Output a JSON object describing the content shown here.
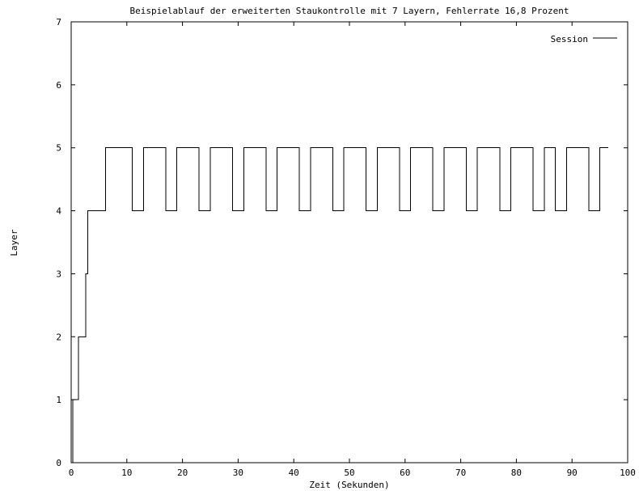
{
  "chart_data": {
    "type": "line",
    "title": "Beispielablauf der erweiterten Staukontrolle mit 7 Layern, Fehlerrate 16,8 Prozent",
    "xlabel": "Zeit (Sekunden)",
    "ylabel": "Layer",
    "xlim": [
      0,
      100
    ],
    "ylim": [
      0,
      7
    ],
    "xticks": [
      0,
      10,
      20,
      30,
      40,
      50,
      60,
      70,
      80,
      90,
      100
    ],
    "yticks": [
      0,
      1,
      2,
      3,
      4,
      5,
      6,
      7
    ],
    "grid": false,
    "legend_position": "top-right",
    "line_style": "step",
    "series": [
      {
        "name": "Session",
        "color": "#000000",
        "points": [
          [
            0.3,
            0
          ],
          [
            0.3,
            1
          ],
          [
            1.3,
            1
          ],
          [
            1.3,
            2
          ],
          [
            2.6,
            2
          ],
          [
            2.6,
            3
          ],
          [
            3.0,
            3
          ],
          [
            3.0,
            4
          ],
          [
            6.2,
            4
          ],
          [
            6.2,
            5
          ],
          [
            11.0,
            5
          ],
          [
            11.0,
            4
          ],
          [
            13.0,
            4
          ],
          [
            13.0,
            5
          ],
          [
            17.0,
            5
          ],
          [
            17.0,
            4
          ],
          [
            19.0,
            4
          ],
          [
            19.0,
            5
          ],
          [
            23.0,
            5
          ],
          [
            23.0,
            4
          ],
          [
            25.0,
            4
          ],
          [
            25.0,
            5
          ],
          [
            29.0,
            5
          ],
          [
            29.0,
            4
          ],
          [
            31.0,
            4
          ],
          [
            31.0,
            5
          ],
          [
            35.0,
            5
          ],
          [
            35.0,
            4
          ],
          [
            37.0,
            4
          ],
          [
            37.0,
            5
          ],
          [
            41.0,
            5
          ],
          [
            41.0,
            4
          ],
          [
            43.0,
            4
          ],
          [
            43.0,
            5
          ],
          [
            47.0,
            5
          ],
          [
            47.0,
            4
          ],
          [
            49.0,
            4
          ],
          [
            49.0,
            5
          ],
          [
            53.0,
            5
          ],
          [
            53.0,
            4
          ],
          [
            55.0,
            4
          ],
          [
            55.0,
            5
          ],
          [
            59.0,
            5
          ],
          [
            59.0,
            4
          ],
          [
            61.0,
            4
          ],
          [
            61.0,
            5
          ],
          [
            65.0,
            5
          ],
          [
            65.0,
            4
          ],
          [
            67.0,
            4
          ],
          [
            67.0,
            5
          ],
          [
            71.0,
            5
          ],
          [
            71.0,
            4
          ],
          [
            73.0,
            4
          ],
          [
            73.0,
            5
          ],
          [
            77.0,
            5
          ],
          [
            77.0,
            4
          ],
          [
            79.0,
            4
          ],
          [
            79.0,
            5
          ],
          [
            83.0,
            5
          ],
          [
            83.0,
            4
          ],
          [
            85.0,
            4
          ],
          [
            85.0,
            5
          ],
          [
            87.0,
            5
          ],
          [
            87.0,
            4
          ],
          [
            89.0,
            4
          ],
          [
            89.0,
            5
          ],
          [
            93.0,
            5
          ],
          [
            93.0,
            4
          ],
          [
            95.0,
            4
          ],
          [
            95.0,
            5
          ],
          [
            96.5,
            5
          ]
        ]
      }
    ]
  }
}
